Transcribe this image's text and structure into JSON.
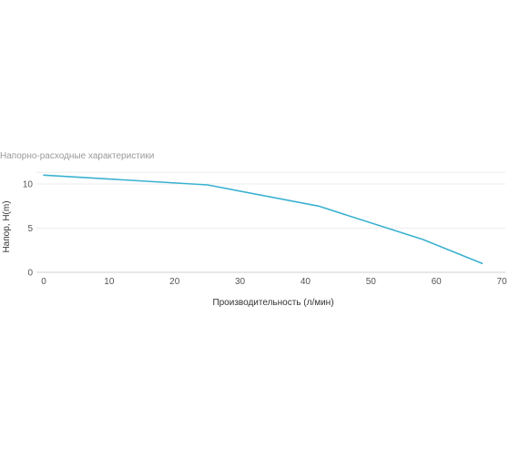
{
  "chart_data": {
    "type": "line",
    "title": "Напорно-расходные характеристики",
    "xlabel": "Производительность (л/мин)",
    "ylabel": "Напор, H(m)",
    "xlim": [
      0,
      70
    ],
    "ylim": [
      0,
      11
    ],
    "x_ticks": [
      0,
      10,
      20,
      30,
      40,
      50,
      60,
      70
    ],
    "y_ticks": [
      0,
      5,
      10
    ],
    "grid": "horizontal",
    "series": [
      {
        "color": "#3bb2d0",
        "points": [
          {
            "x": 0,
            "y": 11
          },
          {
            "x": 25,
            "y": 9.9
          },
          {
            "x": 42,
            "y": 7.5
          },
          {
            "x": 58,
            "y": 3.7
          },
          {
            "x": 67,
            "y": 1
          }
        ]
      }
    ]
  }
}
